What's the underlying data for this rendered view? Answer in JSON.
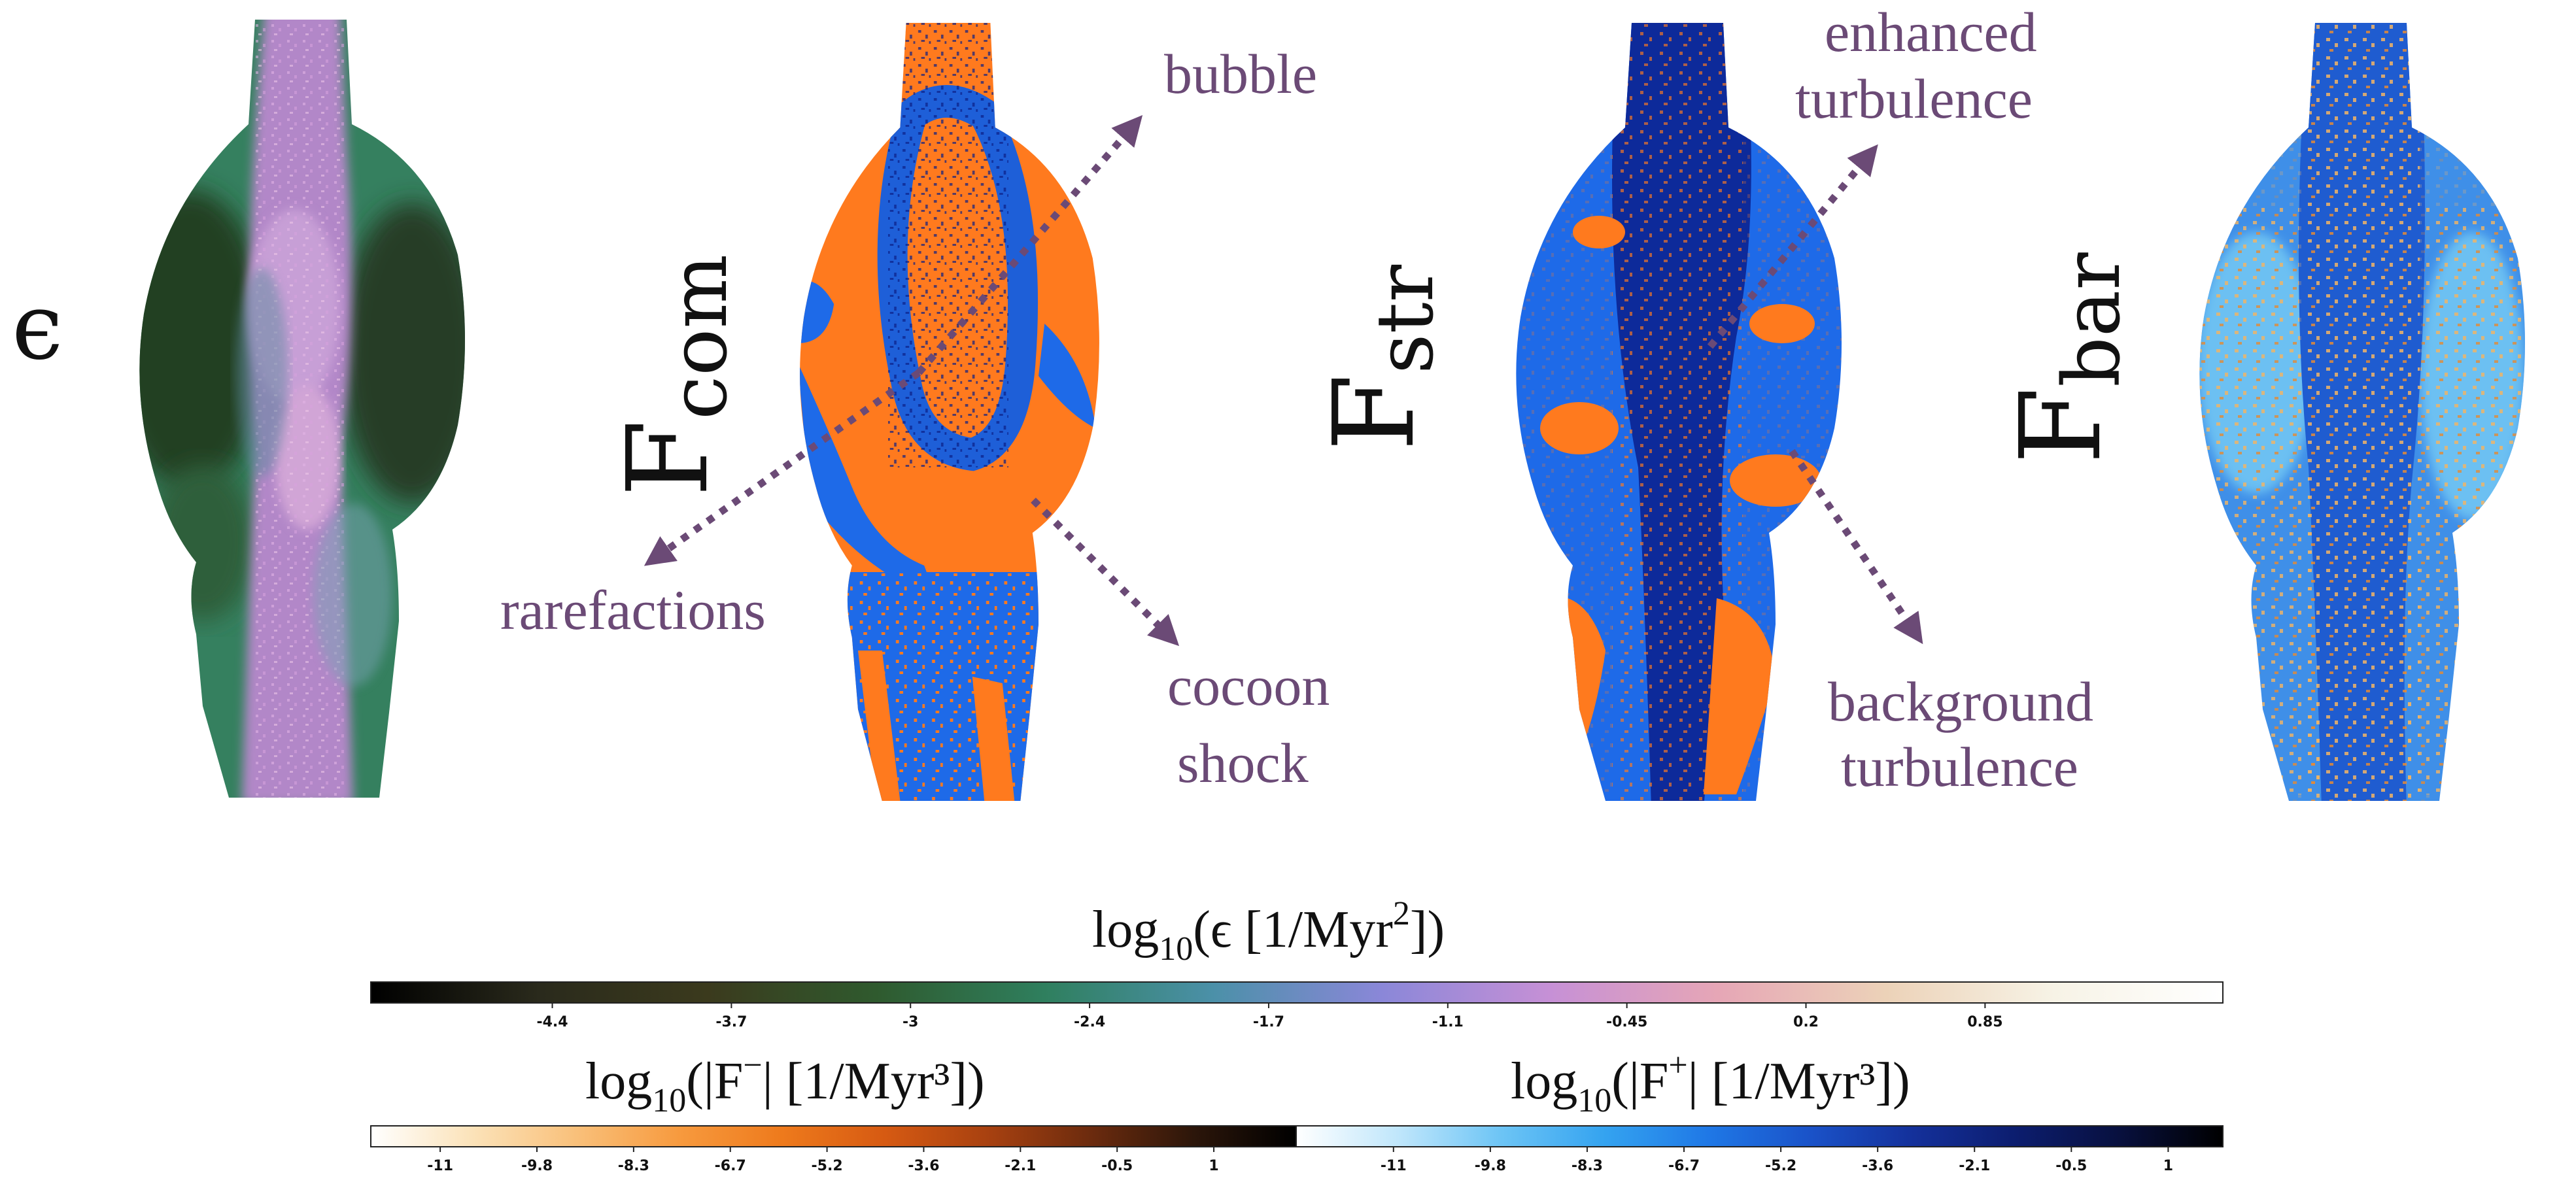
{
  "panels": [
    {
      "id": "epsilon",
      "label_main": "ϵ",
      "label_sub": ""
    },
    {
      "id": "Fcom",
      "label_main": "F",
      "label_sub": "com"
    },
    {
      "id": "Fstr",
      "label_main": "F",
      "label_sub": "str"
    },
    {
      "id": "Fbar",
      "label_main": "F",
      "label_sub": "bar"
    }
  ],
  "annotations": {
    "bubble": "bubble",
    "rarefactions": "rarefactions",
    "cocoon_line1": "cocoon",
    "cocoon_line2": "shock",
    "enhanced_line1": "enhanced",
    "enhanced_line2": "turbulence",
    "background_line1": "background",
    "background_line2": "turbulence"
  },
  "colors": {
    "annotation": "#6b4a76",
    "orange": "#ff7a1e",
    "blue": "#1e6ae8",
    "dark_blue": "#0d2a9a",
    "light_blue": "#48aaf0",
    "pale_orange": "#f2b463",
    "dark_green": "#2b4a2e",
    "teal": "#3f8f82",
    "lilac": "#c79fd6"
  },
  "colorbars": {
    "epsilon": {
      "title_pre": "log",
      "title_sub": "10",
      "title_mid": "(ϵ [1/Myr",
      "title_sup": "2",
      "title_post": "])",
      "ticks": [
        "-4.4",
        "-3.7",
        "-3",
        "-2.4",
        "-1.7",
        "-1.1",
        "-0.45",
        "0.2",
        "0.85"
      ],
      "cmap": [
        "#000000",
        "#2a2a1c",
        "#3b3a1d",
        "#2f5a2e",
        "#2f7f5e",
        "#4b90a8",
        "#8a87d8",
        "#c690d6",
        "#e6a6b6",
        "#ecd2b8",
        "#f7f3e6",
        "#ffffff"
      ]
    },
    "F_minus": {
      "title_pre": "log",
      "title_sub": "10",
      "title_mid": "(|F",
      "title_sup": "−",
      "title_post": "| [1/Myr³])",
      "ticks": [
        "-11",
        "-9.8",
        "-8.3",
        "-6.7",
        "-5.2",
        "-3.6",
        "-2.1",
        "-0.5",
        "1"
      ],
      "cmap": [
        "#ffffff",
        "#fbe2b8",
        "#f9c07a",
        "#f79a3e",
        "#ee7a1c",
        "#d65a12",
        "#a84110",
        "#6c2b0e",
        "#2c160a",
        "#000000"
      ]
    },
    "F_plus": {
      "title_pre": "log",
      "title_sub": "10",
      "title_mid": "(|F",
      "title_sup": "+",
      "title_post": "| [1/Myr³])",
      "ticks": [
        "-11",
        "-9.8",
        "-8.3",
        "-6.7",
        "-5.2",
        "-3.6",
        "-2.1",
        "-0.5",
        "1"
      ],
      "cmap": [
        "#ffffff",
        "#bfe6fb",
        "#6cc4f5",
        "#34a3f0",
        "#1f78e6",
        "#1a52c8",
        "#14309a",
        "#0c1d6e",
        "#08103e",
        "#000000"
      ]
    }
  }
}
